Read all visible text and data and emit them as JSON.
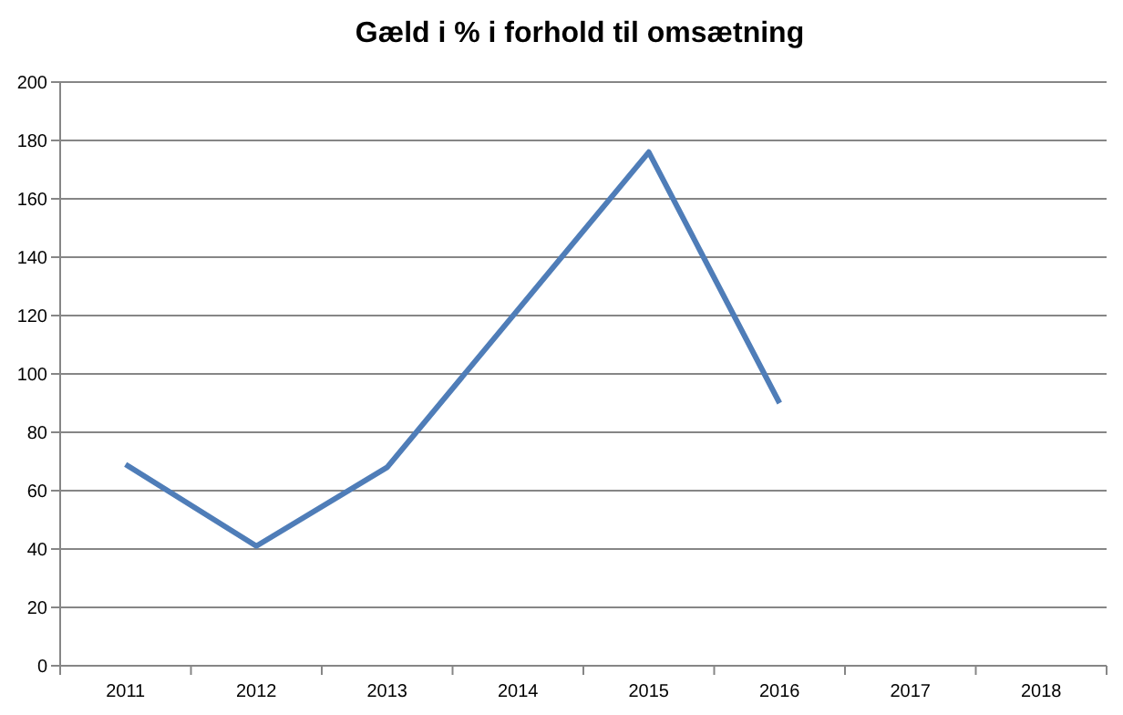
{
  "chart_data": {
    "type": "line",
    "title": "Gæld i % i forhold til omsætning",
    "categories": [
      "2011",
      "2012",
      "2013",
      "2014",
      "2015",
      "2016",
      "2017",
      "2018"
    ],
    "series": [
      {
        "color": "#4f7db8",
        "values": [
          69,
          41,
          68,
          122,
          176,
          90,
          null,
          null
        ]
      }
    ],
    "ylim": [
      0,
      200
    ],
    "yticks": [
      0,
      20,
      40,
      60,
      80,
      100,
      120,
      140,
      160,
      180,
      200
    ],
    "grid": "y",
    "marker": "none",
    "line_style": "solid"
  }
}
